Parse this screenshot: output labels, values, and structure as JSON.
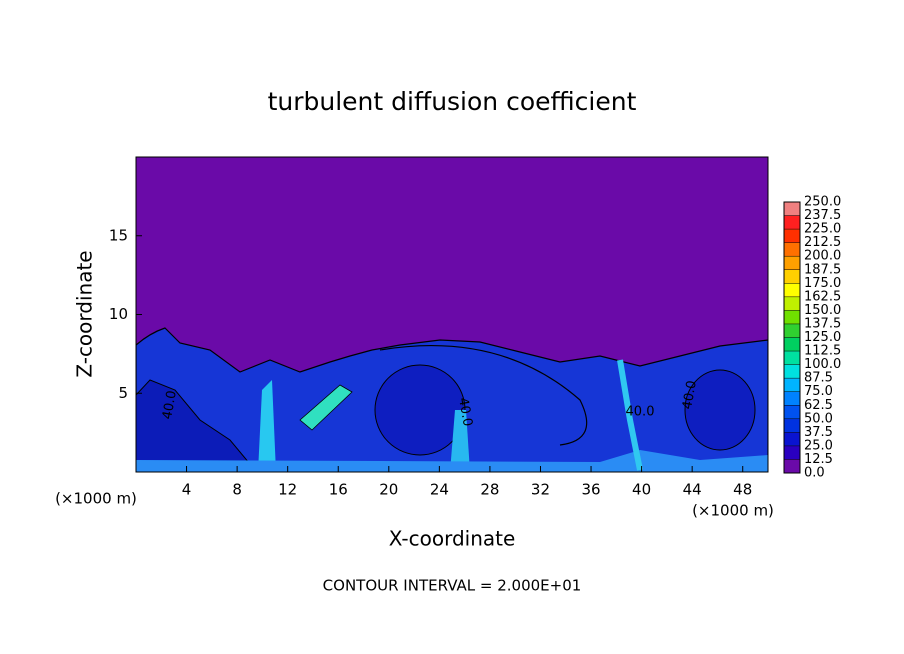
{
  "chart_data": {
    "type": "contour",
    "title": "turbulent diffusion coefficient",
    "x_label": "X-coordinate",
    "y_label": "Z-coordinate",
    "x_unit": "(×1000 m)",
    "y_unit": "(×1000 m)",
    "footnote": "CONTOUR INTERVAL = 2.000E+01",
    "contour_labels": [
      "40.0",
      "40.0",
      "40.0",
      "40.0"
    ],
    "xlim": [
      0,
      50
    ],
    "ylim": [
      0,
      20
    ],
    "xticks": [
      4,
      8,
      12,
      16,
      20,
      24,
      28,
      32,
      36,
      40,
      44,
      48
    ],
    "yticks": [
      5,
      10,
      15
    ],
    "colorbar": {
      "levels": [
        {
          "value": 0,
          "label": "0.0"
        },
        12.5,
        {
          "value": 25,
          "label": "25.0"
        },
        37.5,
        {
          "value": 50,
          "label": "50.0"
        },
        62.5,
        {
          "value": 75,
          "label": "75.0"
        },
        87.5,
        {
          "value": 100,
          "label": "100.0"
        },
        112.5,
        {
          "value": 125,
          "label": "125.0"
        },
        137.5,
        {
          "value": 150,
          "label": "150.0"
        },
        162.5,
        {
          "value": 175,
          "label": "175.0"
        },
        187.5,
        {
          "value": 200,
          "label": "200.0"
        },
        212.5,
        {
          "value": 225,
          "label": "225.0"
        },
        237.5,
        {
          "value": 250,
          "label": "250.0"
        }
      ],
      "colors": [
        "#6a0aa8",
        "#2a00c0",
        "#0a14d0",
        "#0032e0",
        "#0052f0",
        "#0082ff",
        "#00b4ff",
        "#00e0e0",
        "#00e0a0",
        "#00d060",
        "#30d030",
        "#70e000",
        "#c0f000",
        "#ffff00",
        "#ffd000",
        "#ffa000",
        "#ff7000",
        "#ff3000",
        "#ff2020",
        "#f08080"
      ]
    }
  }
}
